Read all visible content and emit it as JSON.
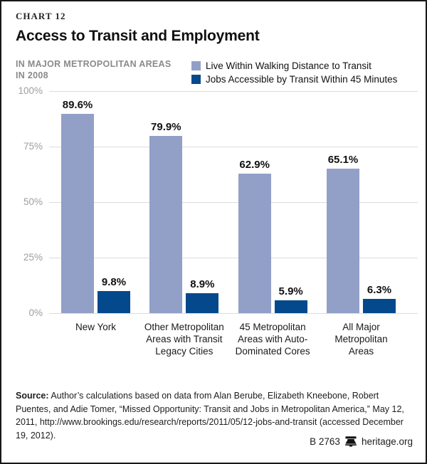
{
  "header": {
    "kicker": "CHART 12",
    "title": "Access to Transit and Employment",
    "subtitle": "IN MAJOR METROPOLITAN AREAS IN 2008"
  },
  "legend": [
    {
      "label": "Live Within Walking Distance to Transit",
      "color": "#92A0C8"
    },
    {
      "label": "Jobs Accessible by Transit Within 45 Minutes",
      "color": "#04498C"
    }
  ],
  "chart_data": {
    "type": "bar",
    "categories": [
      "New York",
      "Other Metropolitan Areas with Transit Legacy Cities",
      "45 Metropolitan Areas with Auto-Dominated Cores",
      "All Major Metropolitan Areas"
    ],
    "series": [
      {
        "name": "Live Within Walking Distance to Transit",
        "color": "#92A0C8",
        "values": [
          89.6,
          79.9,
          62.9,
          65.1
        ]
      },
      {
        "name": "Jobs Accessible by Transit Within 45 Minutes",
        "color": "#04498C",
        "values": [
          9.8,
          8.9,
          5.9,
          6.3
        ]
      }
    ],
    "value_suffix": "%",
    "title": "Access to Transit and Employment",
    "xlabel": "",
    "ylabel": "",
    "ylim": [
      0,
      100
    ],
    "yticks": [
      "100%",
      "75%",
      "50%",
      "25%",
      "0%"
    ],
    "grid": true,
    "legend_position": "top-right",
    "value_labels_shown": true,
    "gridline_color": "#dcdcdc"
  },
  "source": {
    "label": "Source:",
    "text": " Author’s calculations based on data from Alan Berube, Elizabeth Kneebone, Robert Puentes, and Adie Tomer, “Missed Opportunity: Transit and Jobs in Metropolitan America,” May 12, 2011, http://www.brookings.edu/research/reports/2011/05/12-jobs-and-transit (accessed December 19, 2012)."
  },
  "footer": {
    "report_id": "B 2763",
    "bell_icon": "liberty-bell",
    "site": "heritage.org"
  }
}
